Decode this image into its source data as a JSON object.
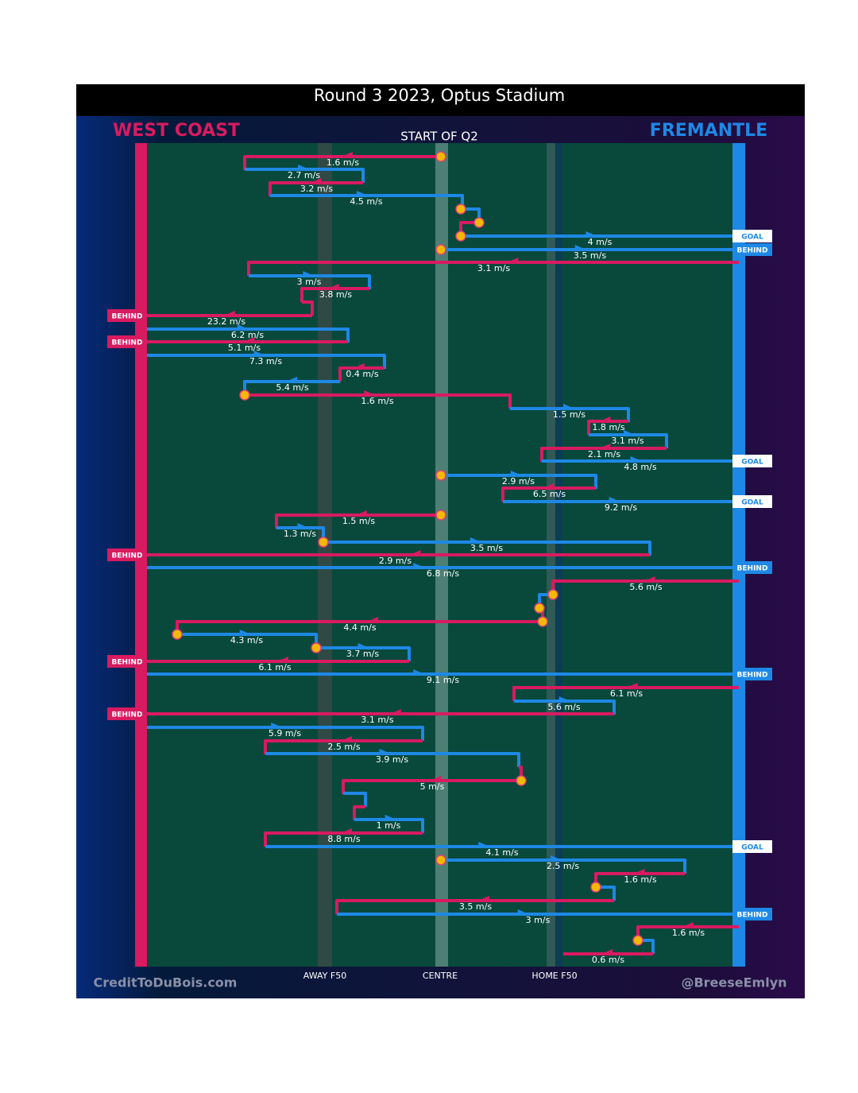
{
  "header": {
    "title": "Round 3 2023, Optus Stadium",
    "left_team": "WEST COAST",
    "right_team": "FREMANTLE",
    "start": "START OF Q2"
  },
  "axis": [
    "AWAY F50",
    "CENTRE",
    "HOME F50"
  ],
  "footer": {
    "left": "CreditToDuBois.com",
    "right": "@BreeseEmlyn"
  },
  "segments": [
    {
      "speed": "1.6 m/s"
    },
    {
      "speed": "2.7 m/s"
    },
    {
      "speed": "3.2 m/s"
    },
    {
      "speed": "4.5 m/s"
    },
    {
      "speed": "4 m/s",
      "outcome": "GOAL"
    },
    {
      "speed": "3.5 m/s",
      "outcome": "BEHIND"
    },
    {
      "speed": "3.1 m/s"
    },
    {
      "speed": "3 m/s"
    },
    {
      "speed": "3.8 m/s"
    },
    {
      "speed": "23.2 m/s",
      "outcome": "BEHIND"
    },
    {
      "speed": "6.2 m/s"
    },
    {
      "speed": "5.1 m/s",
      "outcome": "BEHIND"
    },
    {
      "speed": "7.3 m/s"
    },
    {
      "speed": "0.4 m/s"
    },
    {
      "speed": "5.4 m/s"
    },
    {
      "speed": "1.6 m/s"
    },
    {
      "speed": "1.5 m/s"
    },
    {
      "speed": "1.8 m/s"
    },
    {
      "speed": "3.1 m/s"
    },
    {
      "speed": "2.1 m/s"
    },
    {
      "speed": "4.8 m/s",
      "outcome": "GOAL"
    },
    {
      "speed": "2.9 m/s"
    },
    {
      "speed": "6.5 m/s"
    },
    {
      "speed": "9.2 m/s",
      "outcome": "GOAL"
    },
    {
      "speed": "1.5 m/s"
    },
    {
      "speed": "1.3 m/s"
    },
    {
      "speed": "3.5 m/s"
    },
    {
      "speed": "2.9 m/s",
      "outcome": "BEHIND"
    },
    {
      "speed": "6.8 m/s",
      "outcome": "BEHIND"
    },
    {
      "speed": "5.6 m/s"
    },
    {
      "speed": "4.4 m/s"
    },
    {
      "speed": "4.3 m/s"
    },
    {
      "speed": "3.7 m/s"
    },
    {
      "speed": "6.1 m/s",
      "outcome": "BEHIND"
    },
    {
      "speed": "9.1 m/s",
      "outcome": "BEHIND"
    },
    {
      "speed": "6.1 m/s"
    },
    {
      "speed": "5.6 m/s"
    },
    {
      "speed": "3.1 m/s",
      "outcome": "BEHIND"
    },
    {
      "speed": "5.9 m/s"
    },
    {
      "speed": "2.5 m/s"
    },
    {
      "speed": "3.9 m/s"
    },
    {
      "speed": "5 m/s"
    },
    {
      "speed": "1 m/s"
    },
    {
      "speed": "8.8 m/s"
    },
    {
      "speed": "4.1 m/s",
      "outcome": "GOAL"
    },
    {
      "speed": "2.5 m/s"
    },
    {
      "speed": "1.6 m/s"
    },
    {
      "speed": "3.5 m/s"
    },
    {
      "speed": "3 m/s",
      "outcome": "BEHIND"
    },
    {
      "speed": "1.6 m/s"
    },
    {
      "speed": "0.6 m/s"
    }
  ]
}
